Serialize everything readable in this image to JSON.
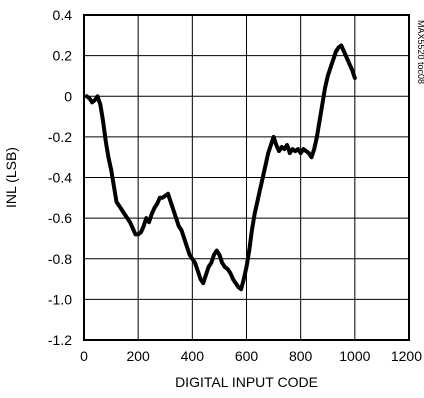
{
  "chart_data": {
    "type": "line",
    "xlabel": "DIGITAL INPUT CODE",
    "ylabel": "INL (LSB)",
    "side_label": "MAX5520 toc08",
    "xlim": [
      0,
      1200
    ],
    "ylim": [
      -1.2,
      0.4
    ],
    "xticks": [
      0,
      200,
      400,
      600,
      800,
      1000,
      1200
    ],
    "yticks": [
      0.4,
      0.2,
      0,
      -0.2,
      -0.4,
      -0.6,
      -0.8,
      -1.0,
      -1.2
    ],
    "xtick_labels": [
      "0",
      "200",
      "400",
      "600",
      "800",
      "1000",
      "1200"
    ],
    "ytick_labels": [
      "0.4",
      "0.2",
      "0",
      "-0.2",
      "-0.4",
      "-0.6",
      "-0.8",
      "-1.0",
      "-1.2"
    ],
    "grid": true,
    "line_color": "#000000",
    "series": [
      {
        "x": [
          10,
          20,
          30,
          40,
          50,
          60,
          70,
          80,
          90,
          100,
          110,
          120,
          130,
          140,
          150,
          160,
          170,
          180,
          190,
          200,
          210,
          220,
          230,
          240,
          250,
          260,
          270,
          280,
          290,
          300,
          310,
          320,
          330,
          340,
          350,
          360,
          370,
          380,
          390,
          400,
          410,
          420,
          430,
          440,
          450,
          460,
          470,
          480,
          490,
          500,
          510,
          520,
          530,
          540,
          550,
          560,
          570,
          580,
          590,
          600,
          610,
          620,
          630,
          640,
          650,
          660,
          670,
          680,
          690,
          700,
          710,
          720,
          730,
          740,
          750,
          760,
          770,
          780,
          790,
          800,
          810,
          820,
          830,
          840,
          850,
          860,
          870,
          880,
          890,
          900,
          910,
          920,
          930,
          940,
          950,
          960,
          970,
          980,
          990,
          1000
        ],
        "y": [
          0.0,
          -0.01,
          -0.03,
          -0.02,
          0.0,
          -0.04,
          -0.12,
          -0.22,
          -0.3,
          -0.36,
          -0.44,
          -0.52,
          -0.54,
          -0.56,
          -0.58,
          -0.6,
          -0.62,
          -0.65,
          -0.68,
          -0.68,
          -0.67,
          -0.64,
          -0.6,
          -0.62,
          -0.58,
          -0.55,
          -0.53,
          -0.5,
          -0.5,
          -0.49,
          -0.48,
          -0.52,
          -0.56,
          -0.6,
          -0.64,
          -0.66,
          -0.7,
          -0.74,
          -0.78,
          -0.8,
          -0.82,
          -0.86,
          -0.9,
          -0.92,
          -0.88,
          -0.84,
          -0.82,
          -0.78,
          -0.76,
          -0.78,
          -0.82,
          -0.84,
          -0.85,
          -0.87,
          -0.9,
          -0.92,
          -0.94,
          -0.95,
          -0.9,
          -0.84,
          -0.76,
          -0.66,
          -0.58,
          -0.52,
          -0.46,
          -0.4,
          -0.34,
          -0.28,
          -0.24,
          -0.2,
          -0.24,
          -0.27,
          -0.25,
          -0.26,
          -0.24,
          -0.28,
          -0.26,
          -0.27,
          -0.26,
          -0.28,
          -0.26,
          -0.27,
          -0.28,
          -0.3,
          -0.26,
          -0.2,
          -0.12,
          -0.04,
          0.04,
          0.1,
          0.14,
          0.18,
          0.22,
          0.24,
          0.25,
          0.22,
          0.19,
          0.16,
          0.13,
          0.09
        ]
      }
    ]
  }
}
